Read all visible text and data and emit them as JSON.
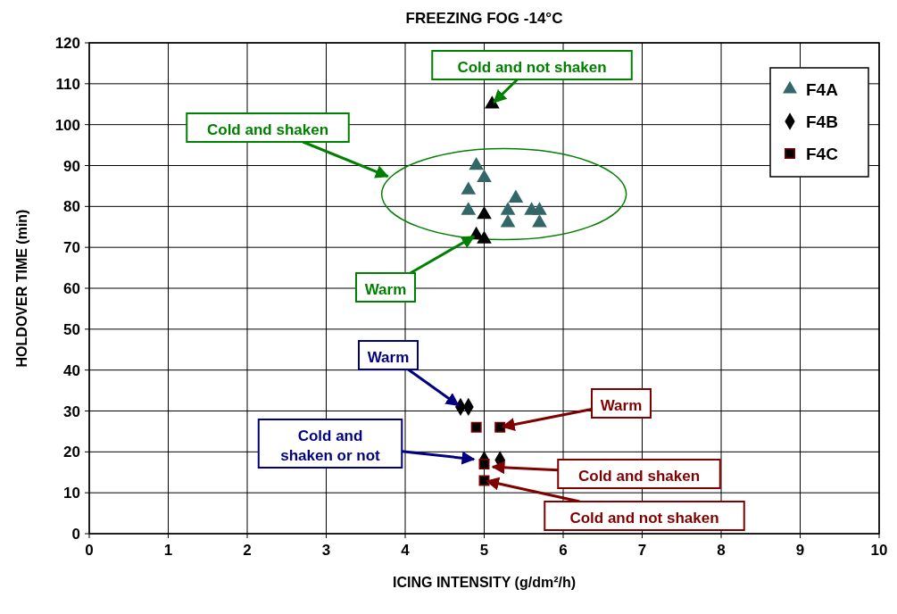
{
  "chart_data": {
    "type": "scatter",
    "title": "FREEZING FOG -14°C",
    "xlabel": "ICING INTENSITY (g/dm²/h)",
    "ylabel": "HOLDOVER TIME (min)",
    "xlim": [
      0,
      10
    ],
    "ylim": [
      0,
      120
    ],
    "xticks": [
      0,
      1,
      2,
      3,
      4,
      5,
      6,
      7,
      8,
      9,
      10
    ],
    "yticks": [
      0,
      10,
      20,
      30,
      40,
      50,
      60,
      70,
      80,
      90,
      100,
      110,
      120
    ],
    "grid": true,
    "legend": "top right",
    "series": [
      {
        "name": "F4A",
        "color": "#336666",
        "marker": "triangle",
        "x": [
          4.9,
          5.0,
          4.8,
          4.8,
          5.4,
          5.3,
          5.3,
          5.6,
          5.7,
          5.7
        ],
        "values": [
          90,
          87,
          84,
          79,
          82,
          79,
          76,
          79,
          79,
          76
        ]
      },
      {
        "color": "#000000",
        "marker": "triangle",
        "x": [
          5.1,
          5.0,
          4.9,
          5.0
        ],
        "values": [
          105,
          78,
          73,
          72
        ]
      },
      {
        "name": "F4B",
        "color": "#000000",
        "marker": "diamond",
        "x": [
          4.7,
          4.8,
          5.0,
          5.2
        ],
        "values": [
          31,
          31,
          18,
          18
        ]
      },
      {
        "name": "F4C",
        "color": "#000000",
        "marker": "square",
        "x": [
          4.9,
          5.2,
          5.0,
          5.0
        ],
        "values": [
          26,
          26,
          17,
          13
        ]
      }
    ],
    "annotations": [
      {
        "text": "Cold and not shaken",
        "x": 5.1,
        "y": 105
      },
      "Cold and shaken",
      {
        "text": "Warm",
        "x": 4.9,
        "y": 73
      },
      {
        "text": "Warm",
        "x": 4.7,
        "y": 31
      },
      "Cold and\nshaken or not",
      {
        "text": "Warm",
        "x": 5.2,
        "y": 26
      },
      "Cold and shaken",
      {
        "text": "Cold and not shaken",
        "x": 5.0,
        "y": 13
      }
    ]
  }
}
